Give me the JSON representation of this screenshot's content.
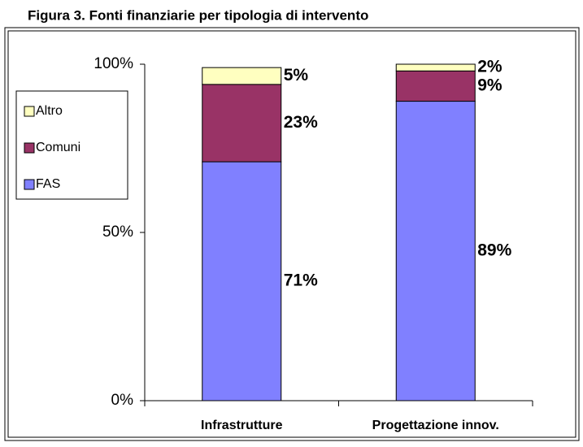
{
  "chart_data": {
    "type": "stacked-bar",
    "title": "Figura 3. Fonti finanziarie per tipologia di intervento",
    "categories": [
      "Infrastrutture",
      "Progettazione innov."
    ],
    "series": [
      {
        "name": "FAS",
        "color": "#8080ff",
        "values": [
          71,
          89
        ],
        "value_labels": [
          "71%",
          "89%"
        ]
      },
      {
        "name": "Comuni",
        "color": "#993366",
        "values": [
          23,
          9
        ],
        "value_labels": [
          "23%",
          "9%"
        ]
      },
      {
        "name": "Altro",
        "color": "#ffffc0",
        "values": [
          5,
          2
        ],
        "value_labels": [
          "5%",
          "2%"
        ]
      }
    ],
    "ylim": [
      0,
      100
    ],
    "yticks": [
      {
        "value": 0,
        "label": "0%"
      },
      {
        "value": 50,
        "label": "50%"
      },
      {
        "value": 100,
        "label": "100%"
      }
    ]
  }
}
